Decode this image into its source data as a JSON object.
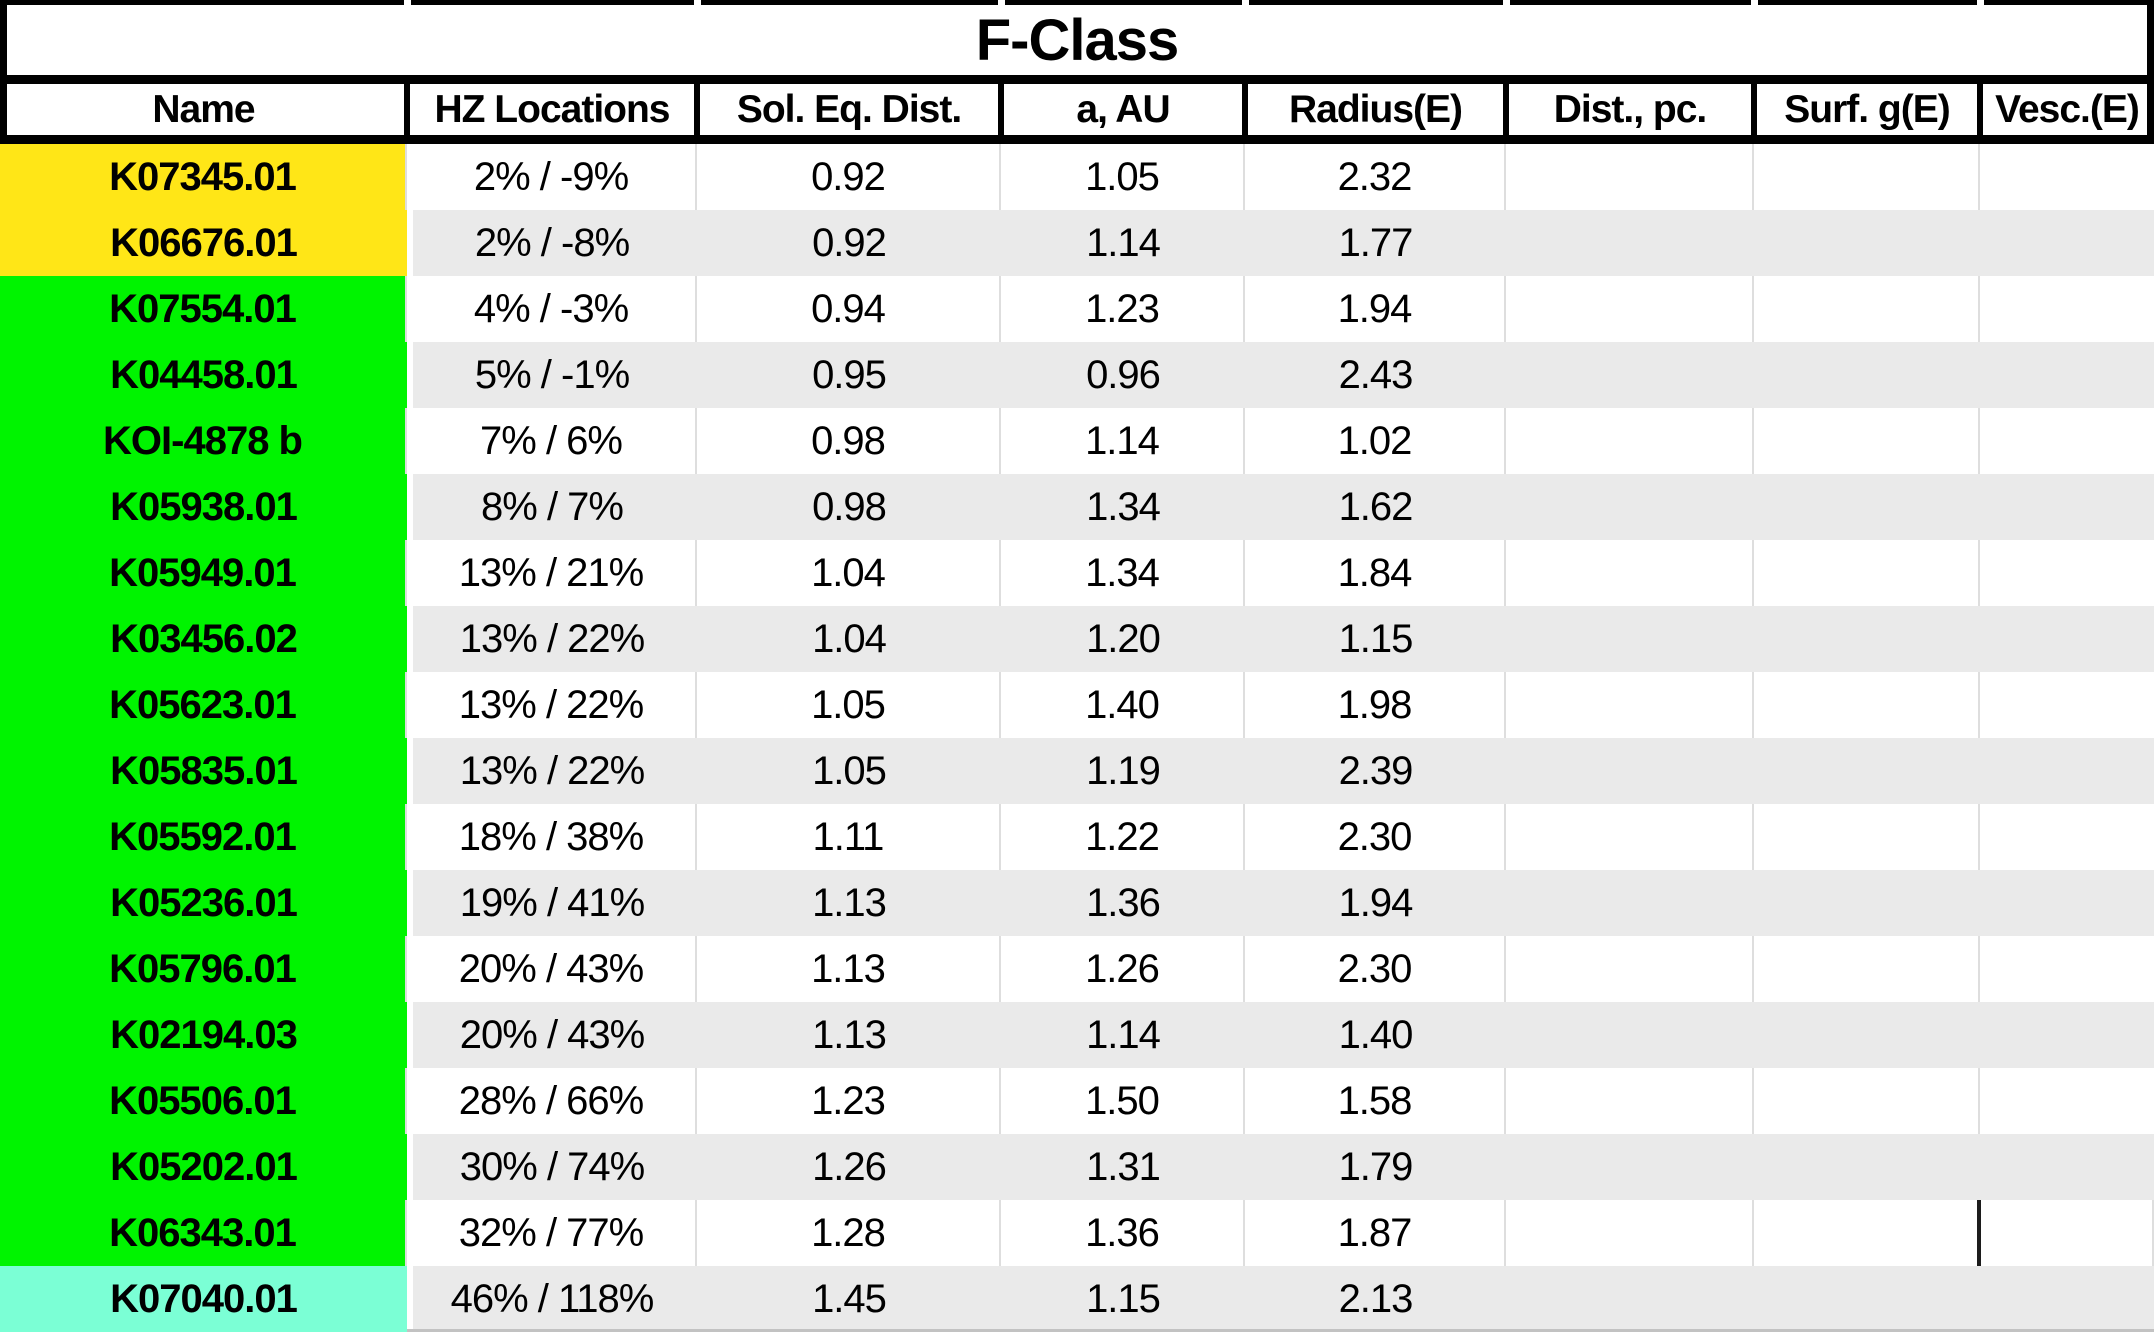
{
  "colors": {
    "yellow": "#ffe617",
    "green": "#00f400",
    "cyan": "#7bffd5",
    "row_stripe": "#eaeaea",
    "grid_line": "#dedede",
    "border": "#000000"
  },
  "chart_data": {
    "type": "table",
    "title": "F-Class",
    "columns": [
      "Name",
      "HZ Locations",
      "Sol. Eq. Dist.",
      "a, AU",
      "Radius(E)",
      "Dist., pc.",
      "Surf. g(E)",
      "Vesc.(E)"
    ],
    "highlight_legend": {
      "yellow_rows": "K07345.01, K06676.01",
      "green_rows": "K07554.01 through K06343.01",
      "cyan_rows": "K07040.01"
    },
    "rows": [
      {
        "name": "K07345.01",
        "highlight": "yellow",
        "hz_locations": "2% / -9%",
        "sol_eq_dist": "0.92",
        "a_au": "1.05",
        "radius_e": "2.32",
        "dist_pc": "",
        "surf_g_e": "",
        "vesc_e": ""
      },
      {
        "name": "K06676.01",
        "highlight": "yellow",
        "hz_locations": "2% / -8%",
        "sol_eq_dist": "0.92",
        "a_au": "1.14",
        "radius_e": "1.77",
        "dist_pc": "",
        "surf_g_e": "",
        "vesc_e": ""
      },
      {
        "name": "K07554.01",
        "highlight": "green",
        "hz_locations": "4% / -3%",
        "sol_eq_dist": "0.94",
        "a_au": "1.23",
        "radius_e": "1.94",
        "dist_pc": "",
        "surf_g_e": "",
        "vesc_e": ""
      },
      {
        "name": "K04458.01",
        "highlight": "green",
        "hz_locations": "5% / -1%",
        "sol_eq_dist": "0.95",
        "a_au": "0.96",
        "radius_e": "2.43",
        "dist_pc": "",
        "surf_g_e": "",
        "vesc_e": ""
      },
      {
        "name": "KOI-4878 b",
        "highlight": "green",
        "hz_locations": "7% / 6%",
        "sol_eq_dist": "0.98",
        "a_au": "1.14",
        "radius_e": "1.02",
        "dist_pc": "",
        "surf_g_e": "",
        "vesc_e": ""
      },
      {
        "name": "K05938.01",
        "highlight": "green",
        "hz_locations": "8% / 7%",
        "sol_eq_dist": "0.98",
        "a_au": "1.34",
        "radius_e": "1.62",
        "dist_pc": "",
        "surf_g_e": "",
        "vesc_e": ""
      },
      {
        "name": "K05949.01",
        "highlight": "green",
        "hz_locations": "13% / 21%",
        "sol_eq_dist": "1.04",
        "a_au": "1.34",
        "radius_e": "1.84",
        "dist_pc": "",
        "surf_g_e": "",
        "vesc_e": ""
      },
      {
        "name": "K03456.02",
        "highlight": "green",
        "hz_locations": "13% / 22%",
        "sol_eq_dist": "1.04",
        "a_au": "1.20",
        "radius_e": "1.15",
        "dist_pc": "",
        "surf_g_e": "",
        "vesc_e": ""
      },
      {
        "name": "K05623.01",
        "highlight": "green",
        "hz_locations": "13% / 22%",
        "sol_eq_dist": "1.05",
        "a_au": "1.40",
        "radius_e": "1.98",
        "dist_pc": "",
        "surf_g_e": "",
        "vesc_e": ""
      },
      {
        "name": "K05835.01",
        "highlight": "green",
        "hz_locations": "13% / 22%",
        "sol_eq_dist": "1.05",
        "a_au": "1.19",
        "radius_e": "2.39",
        "dist_pc": "",
        "surf_g_e": "",
        "vesc_e": ""
      },
      {
        "name": "K05592.01",
        "highlight": "green",
        "hz_locations": "18% / 38%",
        "sol_eq_dist": "1.11",
        "a_au": "1.22",
        "radius_e": "2.30",
        "dist_pc": "",
        "surf_g_e": "",
        "vesc_e": ""
      },
      {
        "name": "K05236.01",
        "highlight": "green",
        "hz_locations": "19% / 41%",
        "sol_eq_dist": "1.13",
        "a_au": "1.36",
        "radius_e": "1.94",
        "dist_pc": "",
        "surf_g_e": "",
        "vesc_e": ""
      },
      {
        "name": "K05796.01",
        "highlight": "green",
        "hz_locations": "20% / 43%",
        "sol_eq_dist": "1.13",
        "a_au": "1.26",
        "radius_e": "2.30",
        "dist_pc": "",
        "surf_g_e": "",
        "vesc_e": ""
      },
      {
        "name": "K02194.03",
        "highlight": "green",
        "hz_locations": "20% / 43%",
        "sol_eq_dist": "1.13",
        "a_au": "1.14",
        "radius_e": "1.40",
        "dist_pc": "",
        "surf_g_e": "",
        "vesc_e": ""
      },
      {
        "name": "K05506.01",
        "highlight": "green",
        "hz_locations": "28% / 66%",
        "sol_eq_dist": "1.23",
        "a_au": "1.50",
        "radius_e": "1.58",
        "dist_pc": "",
        "surf_g_e": "",
        "vesc_e": ""
      },
      {
        "name": "K05202.01",
        "highlight": "green",
        "hz_locations": "30% / 74%",
        "sol_eq_dist": "1.26",
        "a_au": "1.31",
        "radius_e": "1.79",
        "dist_pc": "",
        "surf_g_e": "",
        "vesc_e": ""
      },
      {
        "name": "K06343.01",
        "highlight": "green",
        "hz_locations": "32% / 77%",
        "sol_eq_dist": "1.28",
        "a_au": "1.36",
        "radius_e": "1.87",
        "dist_pc": "",
        "surf_g_e": "",
        "vesc_e": ""
      },
      {
        "name": "K07040.01",
        "highlight": "cyan",
        "hz_locations": "46% / 118%",
        "sol_eq_dist": "1.45",
        "a_au": "1.15",
        "radius_e": "2.13",
        "dist_pc": "",
        "surf_g_e": "",
        "vesc_e": ""
      }
    ]
  }
}
